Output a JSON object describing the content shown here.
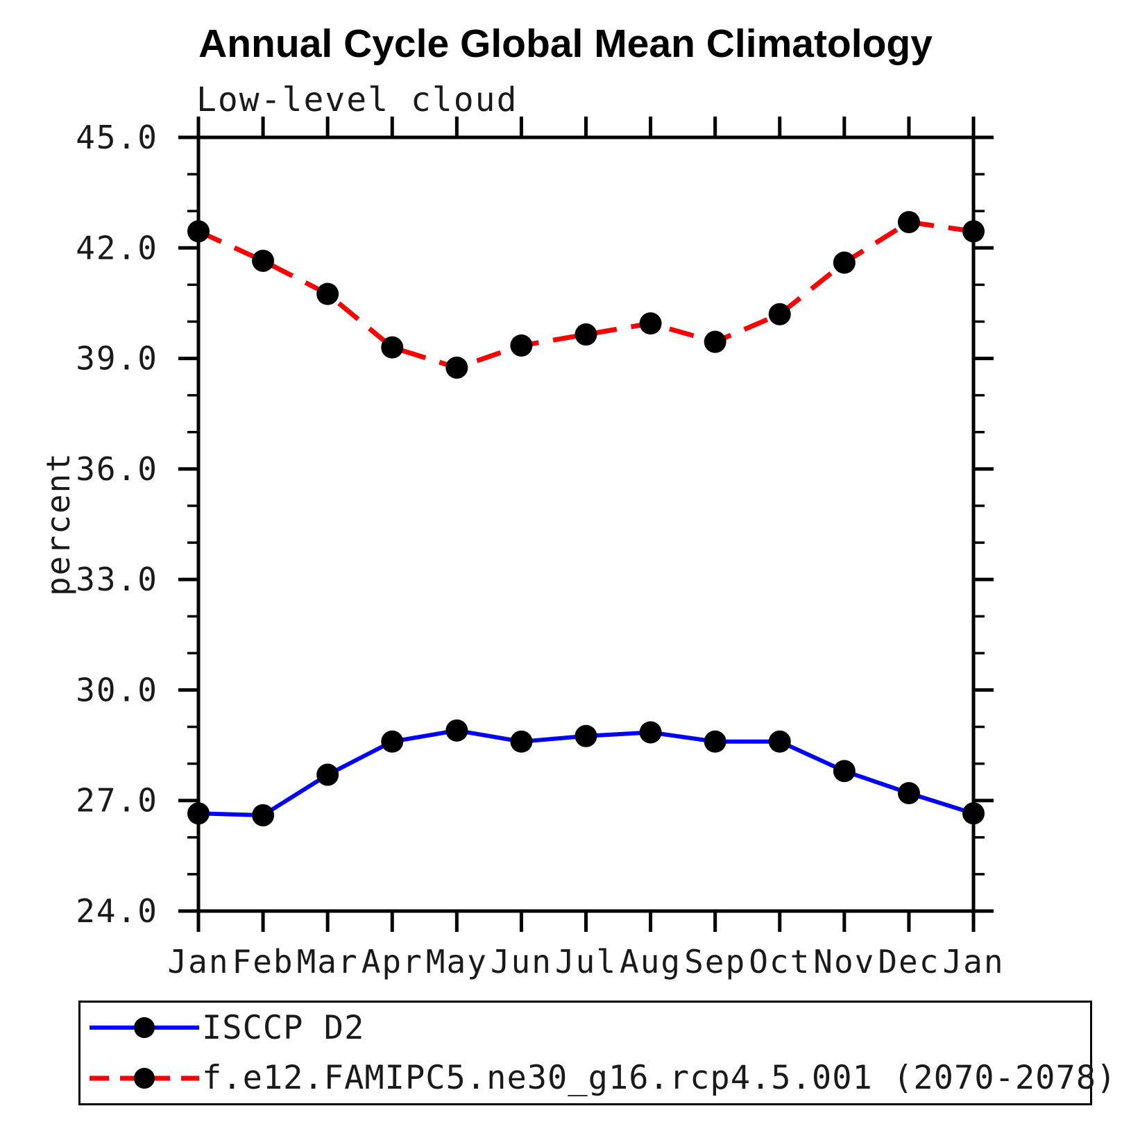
{
  "page": {
    "background": "#ffffff"
  },
  "chart_data": {
    "type": "line",
    "title": "Annual Cycle Global Mean Climatology",
    "subtitle": "Low-level cloud",
    "ylabel": "percent",
    "unit": "percent",
    "categories": [
      "Jan",
      "Feb",
      "Mar",
      "Apr",
      "May",
      "Jun",
      "Jul",
      "Aug",
      "Sep",
      "Oct",
      "Nov",
      "Dec",
      "Jan"
    ],
    "ylim": [
      24.0,
      45.0
    ],
    "y_ticks": [
      24,
      27,
      30,
      33,
      36,
      39,
      42,
      45
    ],
    "y_tick_labels": [
      "24.0",
      "27.0",
      "30.0",
      "33.0",
      "36.0",
      "39.0",
      "42.0",
      "45.0"
    ],
    "minor_tick_step": 1.0,
    "grid": false,
    "legend_position": "bottom-left-box",
    "axis_color": "#000000",
    "series": [
      {
        "name": "ISCCP D2",
        "color": "#0000ff",
        "style": "solid",
        "values": [
          26.65,
          26.6,
          27.7,
          28.6,
          28.9,
          28.6,
          28.75,
          28.85,
          28.6,
          28.6,
          27.8,
          27.2,
          26.65
        ]
      },
      {
        "name": "f.e12.FAMIPC5.ne30_g16.rcp4.5.001 (2070-2078)",
        "color": "#ff0000",
        "style": "dashed",
        "values": [
          42.45,
          41.65,
          40.75,
          39.3,
          38.75,
          39.35,
          39.65,
          39.95,
          39.45,
          40.2,
          41.6,
          42.7,
          42.45
        ]
      }
    ],
    "marker": {
      "shape": "circle",
      "color": "#000000",
      "radius": 16
    }
  }
}
